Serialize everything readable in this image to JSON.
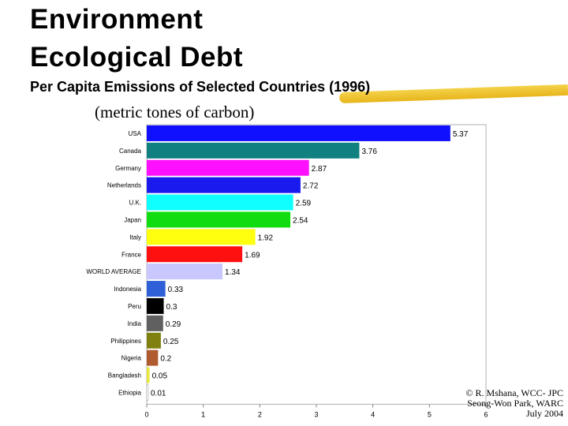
{
  "slide": {
    "title_line1": "Environment",
    "title_line2": "Ecological Debt",
    "subtitle": "Per Capita Emissions of Selected Countries (1996)",
    "unit": "(metric tones of carbon)",
    "credit_line1": "© R. Mshana, WCC- JPC",
    "credit_line2": "Seong-Won Park, WARC",
    "credit_line3": "July 2004"
  },
  "chart_data": {
    "type": "bar",
    "orientation": "horizontal",
    "categories": [
      "USA",
      "Canada",
      "Germany",
      "Netherlands",
      "U.K.",
      "Japan",
      "Italy",
      "France",
      "WORLD AVERAGE",
      "Indonesia",
      "Peru",
      "India",
      "Philippines",
      "Nigeria",
      "Bangladesh",
      "Ethiopia"
    ],
    "values": [
      5.37,
      3.76,
      2.87,
      2.72,
      2.59,
      2.54,
      1.92,
      1.69,
      1.34,
      0.33,
      0.3,
      0.29,
      0.25,
      0.2,
      0.05,
      0.01
    ],
    "value_labels": [
      "5.37",
      "3.76",
      "2.87",
      "2.72",
      "2.59",
      "2.54",
      "1.92",
      "1.69",
      "1.34",
      "0.33",
      "0.3",
      "0.29",
      "0.25",
      "0.2",
      "0.05",
      "0.01"
    ],
    "colors": [
      "#1010ff",
      "#118080",
      "#ff10ff",
      "#1a1aee",
      "#10ffff",
      "#10dd10",
      "#ffff10",
      "#ff1010",
      "#c8c8ff",
      "#3060d8",
      "#000000",
      "#606060",
      "#808010",
      "#b05a30",
      "#e8e840",
      "#ffffff"
    ],
    "xlim": [
      0,
      6
    ],
    "xticks": [
      "0",
      "1",
      "2",
      "3",
      "4",
      "5",
      "6"
    ],
    "grid": false
  }
}
